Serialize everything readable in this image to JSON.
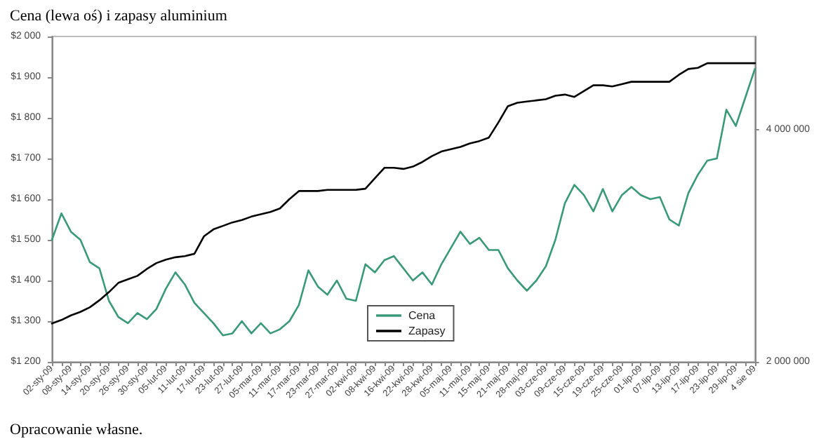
{
  "chart_data": {
    "type": "line",
    "title": "Cena (lewa oś) i zapasy aluminium",
    "annotations": [
      "Opracowanie własne."
    ],
    "categories": [
      "02-sty-09",
      null,
      "08-sty-09",
      null,
      "14-sty-09",
      null,
      "20-sty-09",
      null,
      "26-sty-09",
      null,
      "30-sty-09",
      null,
      "05-lut-09",
      null,
      "11-lut-09",
      null,
      "17-lut-09",
      null,
      "23-lut-09",
      null,
      "27-lut-09",
      null,
      "05-mar-09",
      null,
      "11-mar-09",
      null,
      "17-mar-09",
      null,
      "23-mar-09",
      null,
      "27-mar-09",
      null,
      "02-kwi-09",
      null,
      "08-kwi-09",
      null,
      "16-kwi-09",
      null,
      "22-kwi-09",
      null,
      "28-kwi-09",
      null,
      "05-maj-09",
      null,
      "11-maj-09",
      null,
      "15-maj-09",
      null,
      "21-maj-09",
      null,
      "28-maj-09",
      null,
      "03-cze-09",
      null,
      "09-cze-09",
      null,
      "15-cze-09",
      null,
      "19-cze-09",
      null,
      "25-cze-09",
      null,
      "01-lip-09",
      null,
      "07-lip-09",
      null,
      "13-lip-09",
      null,
      "17-lip-09",
      null,
      "23-lip-09",
      null,
      "29-lip-09",
      null,
      "4 sie 09"
    ],
    "series": [
      {
        "name": "Cena",
        "color": "#3a9a78",
        "values": [
          1500,
          1565,
          1520,
          1500,
          1445,
          1430,
          1350,
          1310,
          1295,
          1320,
          1305,
          1330,
          1380,
          1420,
          1390,
          1345,
          1320,
          1295,
          1265,
          1270,
          1300,
          1270,
          1295,
          1270,
          1280,
          1300,
          1340,
          1425,
          1385,
          1365,
          1400,
          1355,
          1350,
          1440,
          1420,
          1450,
          1460,
          1430,
          1400,
          1420,
          1390,
          1440,
          1480,
          1520,
          1490,
          1505,
          1475,
          1475,
          1430,
          1400,
          1375,
          1400,
          1435,
          1500,
          1590,
          1635,
          1610,
          1570,
          1625,
          1570,
          1610,
          1630,
          1610,
          1600,
          1605,
          1550,
          1535,
          1615,
          1660,
          1695,
          1700,
          1820,
          1780,
          1850,
          1920
        ]
      },
      {
        "name": "Zapasy",
        "color": "#000000",
        "axis": "y2",
        "values": [
          2330000,
          2360000,
          2400000,
          2430000,
          2470000,
          2530000,
          2600000,
          2680000,
          2710000,
          2740000,
          2800000,
          2850000,
          2880000,
          2900000,
          2910000,
          2930000,
          3080000,
          3140000,
          3170000,
          3200000,
          3220000,
          3250000,
          3270000,
          3290000,
          3320000,
          3400000,
          3470000,
          3470000,
          3470000,
          3480000,
          3480000,
          3480000,
          3480000,
          3490000,
          3580000,
          3670000,
          3670000,
          3660000,
          3680000,
          3720000,
          3770000,
          3810000,
          3830000,
          3850000,
          3880000,
          3900000,
          3930000,
          4060000,
          4200000,
          4230000,
          4240000,
          4250000,
          4260000,
          4290000,
          4300000,
          4280000,
          4330000,
          4380000,
          4380000,
          4370000,
          4390000,
          4410000,
          4410000,
          4410000,
          4410000,
          4410000,
          4470000,
          4520000,
          4530000,
          4570000,
          4570000,
          4570000,
          4570000,
          4570000,
          4570000
        ]
      }
    ],
    "ylim": [
      1200,
      2000
    ],
    "yticks": [
      {
        "value": 1200,
        "label": "$1 200"
      },
      {
        "value": 1300,
        "label": "$1 300"
      },
      {
        "value": 1400,
        "label": "$1 400"
      },
      {
        "value": 1500,
        "label": "$1 500"
      },
      {
        "value": 1600,
        "label": "$1 600"
      },
      {
        "value": 1700,
        "label": "$1 700"
      },
      {
        "value": 1800,
        "label": "$1 800"
      },
      {
        "value": 1900,
        "label": "$1 900"
      },
      {
        "value": 2000,
        "label": "$2 000"
      }
    ],
    "y2lim": [
      2000000,
      4800000
    ],
    "y2ticks": [
      {
        "value": 2000000,
        "label": "2 000 000"
      },
      {
        "value": 4000000,
        "label": "4 000 000"
      }
    ],
    "legend": "bottom",
    "grid": false,
    "marker": "none",
    "line_style": "solid"
  }
}
